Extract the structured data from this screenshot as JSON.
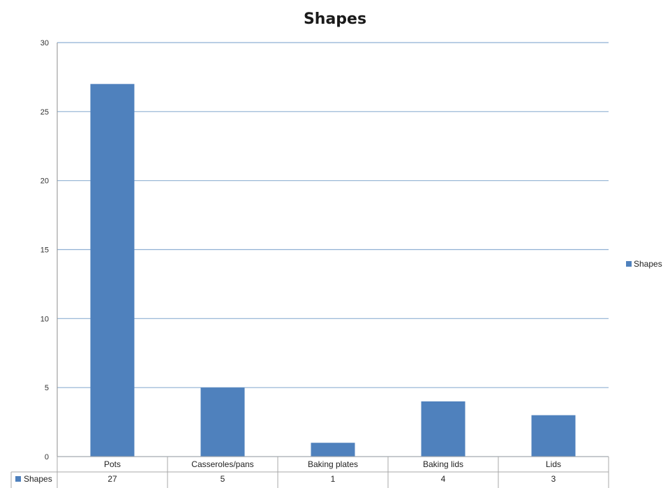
{
  "chart_data": {
    "type": "bar",
    "title": "Shapes",
    "categories": [
      "Pots",
      "Casseroles/pans",
      "Baking plates",
      "Baking lids",
      "Lids"
    ],
    "series": [
      {
        "name": "Shapes",
        "values": [
          27,
          5,
          1,
          4,
          3
        ]
      }
    ],
    "data_table_values": [
      "27",
      "5",
      "1",
      "4",
      "3"
    ],
    "ylim": [
      0,
      30
    ],
    "yticks": [
      "0",
      "5",
      "10",
      "15",
      "20",
      "25",
      "30"
    ],
    "grid": true,
    "legend": "right",
    "colors": {
      "bar": "#4f81bd",
      "grid": "#8fb0d3",
      "table_border": "#a9a9a9"
    }
  }
}
